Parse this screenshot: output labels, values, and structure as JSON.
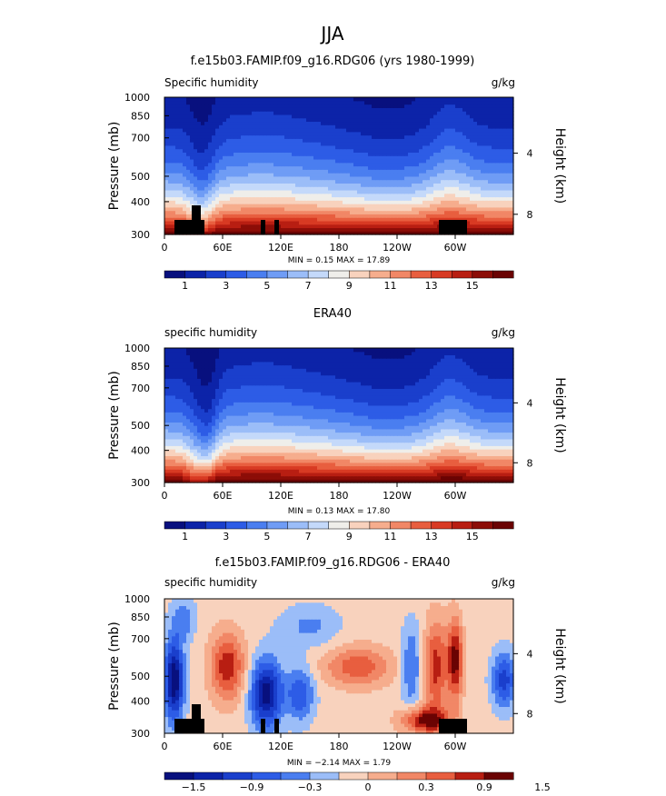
{
  "page_title": "JJA",
  "chart_data": [
    {
      "type": "contour",
      "title": "f.e15b03.FAMIP.f09_g16.RDG06 (yrs 1980-1999)",
      "left_label": "Specific humidity",
      "units": "g/kg",
      "ylabel": "Pressure (mb)",
      "ylabel_right": "Height (km)",
      "yticks": [
        "300",
        "400",
        "500",
        "700",
        "850",
        "1000"
      ],
      "yticks_right": [
        "8",
        "4"
      ],
      "xticks": [
        "0",
        "60E",
        "120E",
        "180",
        "120W",
        "60W"
      ],
      "stats": "MIN =    0.15  MAX =   17.89",
      "min": 0.15,
      "max": 17.89,
      "colorbar_levels": [
        1,
        2,
        3,
        4,
        5,
        6,
        7,
        8,
        9,
        10,
        11,
        12,
        13,
        14,
        15,
        16
      ],
      "colorbar_labels": [
        "1",
        "3",
        "5",
        "7",
        "9",
        "11",
        "13",
        "15"
      ]
    },
    {
      "type": "contour",
      "title": "ERA40",
      "left_label": "specific humidity",
      "units": "g/kg",
      "ylabel": "Pressure (mb)",
      "ylabel_right": "Height (km)",
      "yticks": [
        "300",
        "400",
        "500",
        "700",
        "850",
        "1000"
      ],
      "yticks_right": [
        "8",
        "4"
      ],
      "xticks": [
        "0",
        "60E",
        "120E",
        "180",
        "120W",
        "60W"
      ],
      "stats": "MIN =    0.13  MAX =   17.80",
      "min": 0.13,
      "max": 17.8,
      "colorbar_levels": [
        1,
        2,
        3,
        4,
        5,
        6,
        7,
        8,
        9,
        10,
        11,
        12,
        13,
        14,
        15,
        16
      ],
      "colorbar_labels": [
        "1",
        "3",
        "5",
        "7",
        "9",
        "11",
        "13",
        "15"
      ]
    },
    {
      "type": "contour",
      "title": "f.e15b03.FAMIP.f09_g16.RDG06 - ERA40",
      "left_label": "specific humidity",
      "units": "g/kg",
      "ylabel": "Pressure (mb)",
      "ylabel_right": "Height (km)",
      "yticks": [
        "300",
        "400",
        "500",
        "700",
        "850",
        "1000"
      ],
      "yticks_right": [
        "8",
        "4"
      ],
      "xticks": [
        "0",
        "60E",
        "120E",
        "180",
        "120W",
        "60W"
      ],
      "stats": "MIN =   −2.14  MAX =   1.79",
      "min": -2.14,
      "max": 1.79,
      "colorbar_levels": [
        -1.5,
        -1.2,
        -0.9,
        -0.6,
        -0.3,
        0,
        0.3,
        0.6,
        0.9,
        1.2,
        1.5
      ],
      "colorbar_labels": [
        "−1.5",
        "−0.9",
        "−0.3",
        "0",
        "0.3",
        "0.9",
        "1.5"
      ]
    }
  ],
  "palette": [
    "#08107e",
    "#0c23a8",
    "#1a3fcc",
    "#2d5ce6",
    "#4a7ef0",
    "#6f9cf5",
    "#9bbdf8",
    "#c4d9fa",
    "#efeeea",
    "#f8d2bd",
    "#f6ad8d",
    "#f18766",
    "#e85e3f",
    "#d83a23",
    "#b81e12",
    "#8c0d07",
    "#6a0303"
  ]
}
